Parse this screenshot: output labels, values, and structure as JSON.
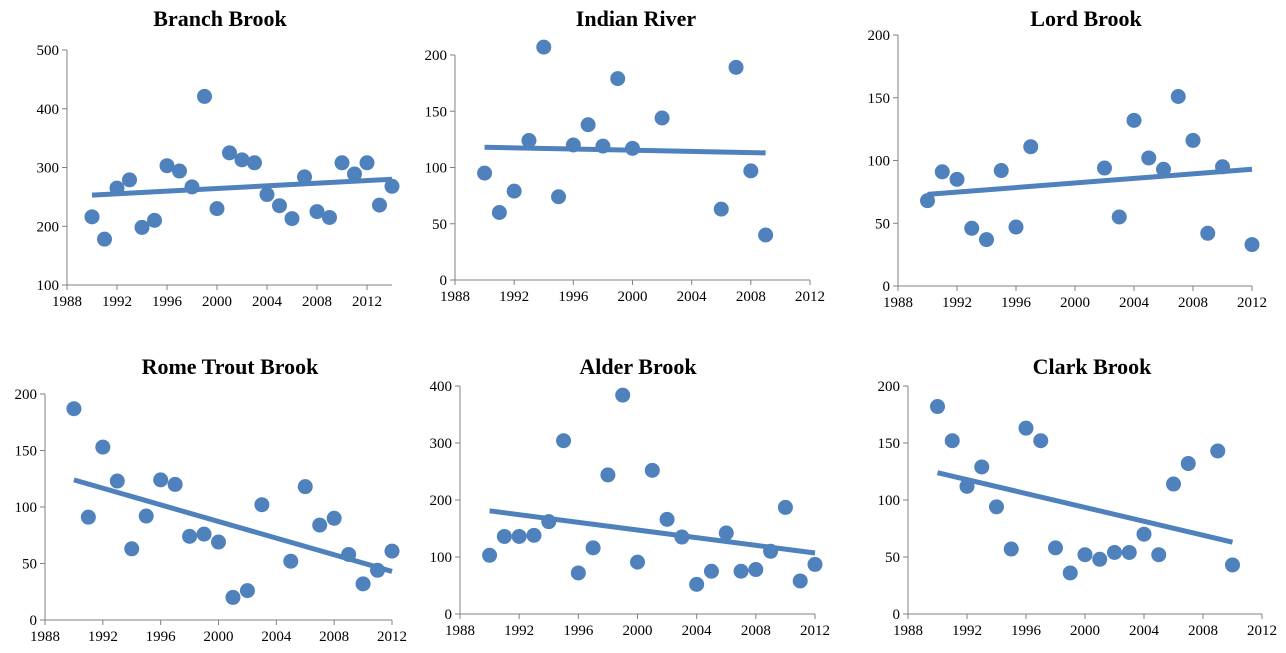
{
  "colors": {
    "marker": "#4f81bd",
    "trend": "#4f81bd",
    "axis": "#808080"
  },
  "chart_data": [
    {
      "type": "scatter",
      "title": "Branch Brook",
      "xlim": [
        1988,
        2014
      ],
      "ylim": [
        100,
        500
      ],
      "xticks": [
        1988,
        1992,
        1996,
        2000,
        2004,
        2008,
        2012
      ],
      "yticks": [
        100,
        200,
        300,
        400,
        500
      ],
      "points": [
        [
          1990,
          216
        ],
        [
          1991,
          178
        ],
        [
          1992,
          265
        ],
        [
          1993,
          279
        ],
        [
          1994,
          198
        ],
        [
          1995,
          210
        ],
        [
          1996,
          303
        ],
        [
          1997,
          294
        ],
        [
          1998,
          267
        ],
        [
          1999,
          421
        ],
        [
          2000,
          230
        ],
        [
          2001,
          325
        ],
        [
          2002,
          313
        ],
        [
          2003,
          308
        ],
        [
          2004,
          254
        ],
        [
          2005,
          235
        ],
        [
          2006,
          213
        ],
        [
          2007,
          284
        ],
        [
          2008,
          225
        ],
        [
          2009,
          215
        ],
        [
          2010,
          308
        ],
        [
          2011,
          289
        ],
        [
          2012,
          308
        ],
        [
          2013,
          236
        ],
        [
          2014,
          268
        ]
      ],
      "trendline": [
        [
          1990,
          253
        ],
        [
          2014,
          280
        ]
      ]
    },
    {
      "type": "scatter",
      "title": "Indian River",
      "xlim": [
        1988,
        2012
      ],
      "ylim": [
        0,
        200
      ],
      "xticks": [
        1988,
        1992,
        1996,
        2000,
        2004,
        2008,
        2012
      ],
      "yticks": [
        0,
        50,
        100,
        150,
        200
      ],
      "points": [
        [
          1990,
          95
        ],
        [
          1991,
          60
        ],
        [
          1992,
          79
        ],
        [
          1993,
          124
        ],
        [
          1994,
          207
        ],
        [
          1995,
          74
        ],
        [
          1996,
          120
        ],
        [
          1997,
          138
        ],
        [
          1998,
          119
        ],
        [
          1999,
          179
        ],
        [
          2000,
          117
        ],
        [
          2002,
          144
        ],
        [
          2006,
          63
        ],
        [
          2007,
          189
        ],
        [
          2008,
          97
        ],
        [
          2009,
          40
        ]
      ],
      "trendline": [
        [
          1990,
          118
        ],
        [
          2009,
          113
        ]
      ]
    },
    {
      "type": "scatter",
      "title": "Lord Brook",
      "xlim": [
        1988,
        2012
      ],
      "ylim": [
        0,
        200
      ],
      "xticks": [
        1988,
        1992,
        1996,
        2000,
        2004,
        2008,
        2012
      ],
      "yticks": [
        0,
        50,
        100,
        150,
        200
      ],
      "points": [
        [
          1990,
          68
        ],
        [
          1991,
          91
        ],
        [
          1992,
          85
        ],
        [
          1993,
          46
        ],
        [
          1994,
          37
        ],
        [
          1995,
          92
        ],
        [
          1996,
          47
        ],
        [
          1997,
          111
        ],
        [
          2002,
          94
        ],
        [
          2003,
          55
        ],
        [
          2004,
          132
        ],
        [
          2005,
          102
        ],
        [
          2006,
          93
        ],
        [
          2007,
          151
        ],
        [
          2008,
          116
        ],
        [
          2009,
          42
        ],
        [
          2010,
          95
        ],
        [
          2012,
          33
        ]
      ],
      "trendline": [
        [
          1990,
          73
        ],
        [
          2012,
          93
        ]
      ]
    },
    {
      "type": "scatter",
      "title": "Rome Trout Brook",
      "xlim": [
        1988,
        2012
      ],
      "ylim": [
        0,
        200
      ],
      "xticks": [
        1988,
        1992,
        1996,
        2000,
        2004,
        2008,
        2012
      ],
      "yticks": [
        0,
        50,
        100,
        150,
        200
      ],
      "points": [
        [
          1990,
          187
        ],
        [
          1991,
          91
        ],
        [
          1992,
          153
        ],
        [
          1993,
          123
        ],
        [
          1994,
          63
        ],
        [
          1995,
          92
        ],
        [
          1996,
          124
        ],
        [
          1997,
          120
        ],
        [
          1998,
          74
        ],
        [
          1999,
          76
        ],
        [
          2000,
          69
        ],
        [
          2001,
          20
        ],
        [
          2002,
          26
        ],
        [
          2003,
          102
        ],
        [
          2005,
          52
        ],
        [
          2006,
          118
        ],
        [
          2007,
          84
        ],
        [
          2008,
          90
        ],
        [
          2009,
          58
        ],
        [
          2010,
          32
        ],
        [
          2011,
          44
        ],
        [
          2012,
          61
        ]
      ],
      "trendline": [
        [
          1990,
          124
        ],
        [
          2012,
          43
        ]
      ]
    },
    {
      "type": "scatter",
      "title": "Alder Brook",
      "xlim": [
        1988,
        2012
      ],
      "ylim": [
        0,
        400
      ],
      "xticks": [
        1988,
        1992,
        1996,
        2000,
        2004,
        2008,
        2012
      ],
      "yticks": [
        0,
        100,
        200,
        300,
        400
      ],
      "points": [
        [
          1990,
          103
        ],
        [
          1991,
          136
        ],
        [
          1992,
          136
        ],
        [
          1993,
          138
        ],
        [
          1994,
          162
        ],
        [
          1995,
          304
        ],
        [
          1996,
          72
        ],
        [
          1997,
          116
        ],
        [
          1998,
          244
        ],
        [
          1999,
          384
        ],
        [
          2000,
          91
        ],
        [
          2001,
          252
        ],
        [
          2002,
          166
        ],
        [
          2003,
          135
        ],
        [
          2004,
          52
        ],
        [
          2005,
          75
        ],
        [
          2006,
          142
        ],
        [
          2007,
          75
        ],
        [
          2008,
          78
        ],
        [
          2009,
          110
        ],
        [
          2010,
          187
        ],
        [
          2011,
          58
        ],
        [
          2012,
          87
        ]
      ],
      "trendline": [
        [
          1990,
          181
        ],
        [
          2012,
          107
        ]
      ]
    },
    {
      "type": "scatter",
      "title": "Clark Brook",
      "xlim": [
        1988,
        2012
      ],
      "ylim": [
        0,
        200
      ],
      "xticks": [
        1988,
        1992,
        1996,
        2000,
        2004,
        2008,
        2012
      ],
      "yticks": [
        0,
        50,
        100,
        150,
        200
      ],
      "points": [
        [
          1990,
          182
        ],
        [
          1991,
          152
        ],
        [
          1992,
          112
        ],
        [
          1993,
          129
        ],
        [
          1994,
          94
        ],
        [
          1995,
          57
        ],
        [
          1996,
          163
        ],
        [
          1997,
          152
        ],
        [
          1998,
          58
        ],
        [
          1999,
          36
        ],
        [
          2000,
          52
        ],
        [
          2001,
          48
        ],
        [
          2002,
          54
        ],
        [
          2003,
          54
        ],
        [
          2004,
          70
        ],
        [
          2005,
          52
        ],
        [
          2006,
          114
        ],
        [
          2007,
          132
        ],
        [
          2009,
          143
        ],
        [
          2010,
          43
        ]
      ],
      "trendline": [
        [
          1990,
          124
        ],
        [
          2010,
          63
        ]
      ]
    }
  ]
}
